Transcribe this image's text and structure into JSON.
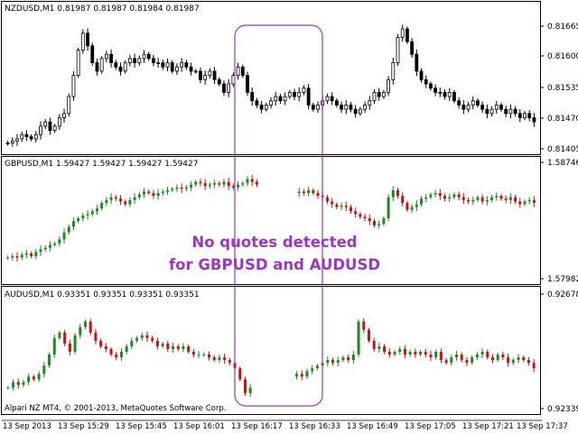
{
  "platform_footer": "Alpari NZ MT4, © 2001-2013, MetaQuotes Software Corp.",
  "annotation": {
    "lines": [
      "No quotes detected",
      "for GBPUSD and AUDUSD"
    ],
    "color": "#9b38c0"
  },
  "colors": {
    "bull": "#1f8a1f",
    "bear": "#cc1010",
    "nzd_bar": "#000000",
    "background": "#ffffff",
    "grid": "#c8c8c8",
    "price_marker": "#000000"
  },
  "time_axis": {
    "labels": [
      "13 Sep 2013",
      "13 Sep 15:29",
      "13 Sep 15:45",
      "13 Sep 16:01",
      "13 Sep 16:17",
      "13 Sep 16:33",
      "13 Sep 16:49",
      "13 Sep 17:05",
      "13 Sep 17:21",
      "13 Sep 17:37"
    ]
  },
  "chart_data": [
    {
      "type": "candlestick",
      "title": "NZDUSD,M1  0.81987 0.81987 0.81984 0.81987",
      "symbol": "NZDUSD",
      "timeframe": "M1",
      "ohlc_header": "0.81987 0.81987 0.81984 0.81987",
      "color_mode": "mono",
      "price_labels": [
        "0.81665",
        "0.81600",
        "0.81535",
        "0.81470",
        "0.81405"
      ],
      "ylim": [
        0.8139,
        0.8171
      ],
      "current_price": 0.81987,
      "gaps": [],
      "closes": [
        0.8141,
        0.81415,
        0.8142,
        0.8143,
        0.81425,
        0.8142,
        0.8143,
        0.8145,
        0.8146,
        0.8144,
        0.8145,
        0.8147,
        0.8148,
        0.8152,
        0.8157,
        0.8163,
        0.8167,
        0.8164,
        0.816,
        0.8158,
        0.8161,
        0.8162,
        0.816,
        0.8159,
        0.8158,
        0.816,
        0.8161,
        0.816,
        0.8161,
        0.8162,
        0.8161,
        0.816,
        0.816,
        0.8159,
        0.816,
        0.8158,
        0.8159,
        0.816,
        0.8159,
        0.8158,
        0.8158,
        0.8156,
        0.8157,
        0.8158,
        0.8156,
        0.8155,
        0.8153,
        0.8155,
        0.8157,
        0.8159,
        0.8157,
        0.8153,
        0.8151,
        0.815,
        0.8149,
        0.815,
        0.8151,
        0.8152,
        0.8151,
        0.8152,
        0.8153,
        0.8152,
        0.8153,
        0.8154,
        0.815,
        0.8149,
        0.815,
        0.8151,
        0.8152,
        0.8151,
        0.815,
        0.8149,
        0.815,
        0.8149,
        0.8148,
        0.8149,
        0.815,
        0.8151,
        0.8153,
        0.8152,
        0.8153,
        0.8156,
        0.816,
        0.8166,
        0.8168,
        0.8165,
        0.8162,
        0.8158,
        0.8156,
        0.8155,
        0.8154,
        0.8153,
        0.8153,
        0.8152,
        0.8153,
        0.8151,
        0.815,
        0.8149,
        0.815,
        0.8151,
        0.815,
        0.8149,
        0.8148,
        0.8149,
        0.815,
        0.8149,
        0.8148,
        0.8149,
        0.8148,
        0.8147,
        0.8148,
        0.8147,
        0.8146
      ]
    },
    {
      "type": "candlestick",
      "title": "GBPUSD,M1  1.59427 1.59427 1.59427 1.59427",
      "symbol": "GBPUSD",
      "timeframe": "M1",
      "ohlc_header": "1.59427 1.59427 1.59427 1.59427",
      "color_mode": "color",
      "price_labels": [
        "1.58746",
        "1.57982"
      ],
      "ylim": [
        1.5795,
        1.5876
      ],
      "current_price": 1.59427,
      "gaps": [
        [
          54,
          62
        ]
      ],
      "closes": [
        1.5812,
        1.5813,
        1.5812,
        1.5814,
        1.5815,
        1.5813,
        1.5816,
        1.5818,
        1.5819,
        1.5821,
        1.5822,
        1.5825,
        1.583,
        1.5834,
        1.5838,
        1.584,
        1.5842,
        1.5843,
        1.5845,
        1.5847,
        1.5851,
        1.5853,
        1.5855,
        1.5854,
        1.5852,
        1.585,
        1.5853,
        1.5855,
        1.5857,
        1.5859,
        1.5858,
        1.5856,
        1.5858,
        1.5859,
        1.586,
        1.5861,
        1.5862,
        1.5861,
        1.5862,
        1.5864,
        1.5866,
        1.5865,
        1.5863,
        1.5864,
        1.5865,
        1.5864,
        1.5866,
        1.5863,
        1.5862,
        1.5864,
        1.5865,
        1.5868,
        1.5866,
        1.5864,
        1.5862,
        1.586,
        1.5861,
        1.586,
        1.5859,
        1.5858,
        1.5857,
        1.5858,
        1.5859,
        1.5858,
        1.586,
        1.5858,
        1.5856,
        1.5855,
        1.5852,
        1.585,
        1.5848,
        1.5849,
        1.5848,
        1.5845,
        1.5843,
        1.5841,
        1.584,
        1.5838,
        1.5835,
        1.5836,
        1.584,
        1.5855,
        1.586,
        1.5856,
        1.5851,
        1.5846,
        1.5848,
        1.585,
        1.5854,
        1.5855,
        1.5857,
        1.5858,
        1.5856,
        1.5854,
        1.5855,
        1.5857,
        1.5855,
        1.5853,
        1.5852,
        1.5853,
        1.5855,
        1.5852,
        1.5853,
        1.5855,
        1.5856,
        1.5854,
        1.5853,
        1.5855,
        1.5852,
        1.585,
        1.5852,
        1.5853,
        1.5851
      ]
    },
    {
      "type": "candlestick",
      "title": "AUDUSD,M1  0.93351 0.93351 0.93351 0.93351",
      "symbol": "AUDUSD",
      "timeframe": "M1",
      "ohlc_header": "0.93351 0.93351 0.93351 0.93351",
      "color_mode": "color",
      "price_labels": [
        "0.92678",
        "0.92339"
      ],
      "ylim": [
        0.9232,
        0.927
      ],
      "current_price": 0.93351,
      "gaps": [
        [
          48,
          56
        ]
      ],
      "closes": [
        0.9238,
        0.924,
        0.9239,
        0.924,
        0.9242,
        0.9241,
        0.9243,
        0.9246,
        0.925,
        0.9256,
        0.9258,
        0.9254,
        0.9251,
        0.9257,
        0.926,
        0.9262,
        0.9258,
        0.9255,
        0.9253,
        0.9252,
        0.925,
        0.9249,
        0.9251,
        0.9253,
        0.9255,
        0.9256,
        0.9257,
        0.9256,
        0.9255,
        0.9253,
        0.9254,
        0.9252,
        0.9253,
        0.9252,
        0.9253,
        0.9251,
        0.925,
        0.925,
        0.925,
        0.9249,
        0.9248,
        0.9249,
        0.9248,
        0.9247,
        0.9245,
        0.9241,
        0.9236,
        0.9238,
        0.924,
        0.9244,
        0.9243,
        0.9242,
        0.9243,
        0.9242,
        0.9243,
        0.9242,
        0.9243,
        0.9242,
        0.9244,
        0.9245,
        0.9246,
        0.9247,
        0.9248,
        0.9247,
        0.9248,
        0.9249,
        0.9248,
        0.925,
        0.9262,
        0.9259,
        0.9255,
        0.9252,
        0.9253,
        0.9251,
        0.925,
        0.9251,
        0.9252,
        0.925,
        0.9251,
        0.925,
        0.9251,
        0.925,
        0.9249,
        0.9251,
        0.9248,
        0.9247,
        0.9249,
        0.925,
        0.9248,
        0.9247,
        0.9249,
        0.925,
        0.9251,
        0.9249,
        0.9248,
        0.925,
        0.9249,
        0.9247,
        0.9248,
        0.9249,
        0.9248,
        0.9247,
        0.9245
      ]
    }
  ]
}
